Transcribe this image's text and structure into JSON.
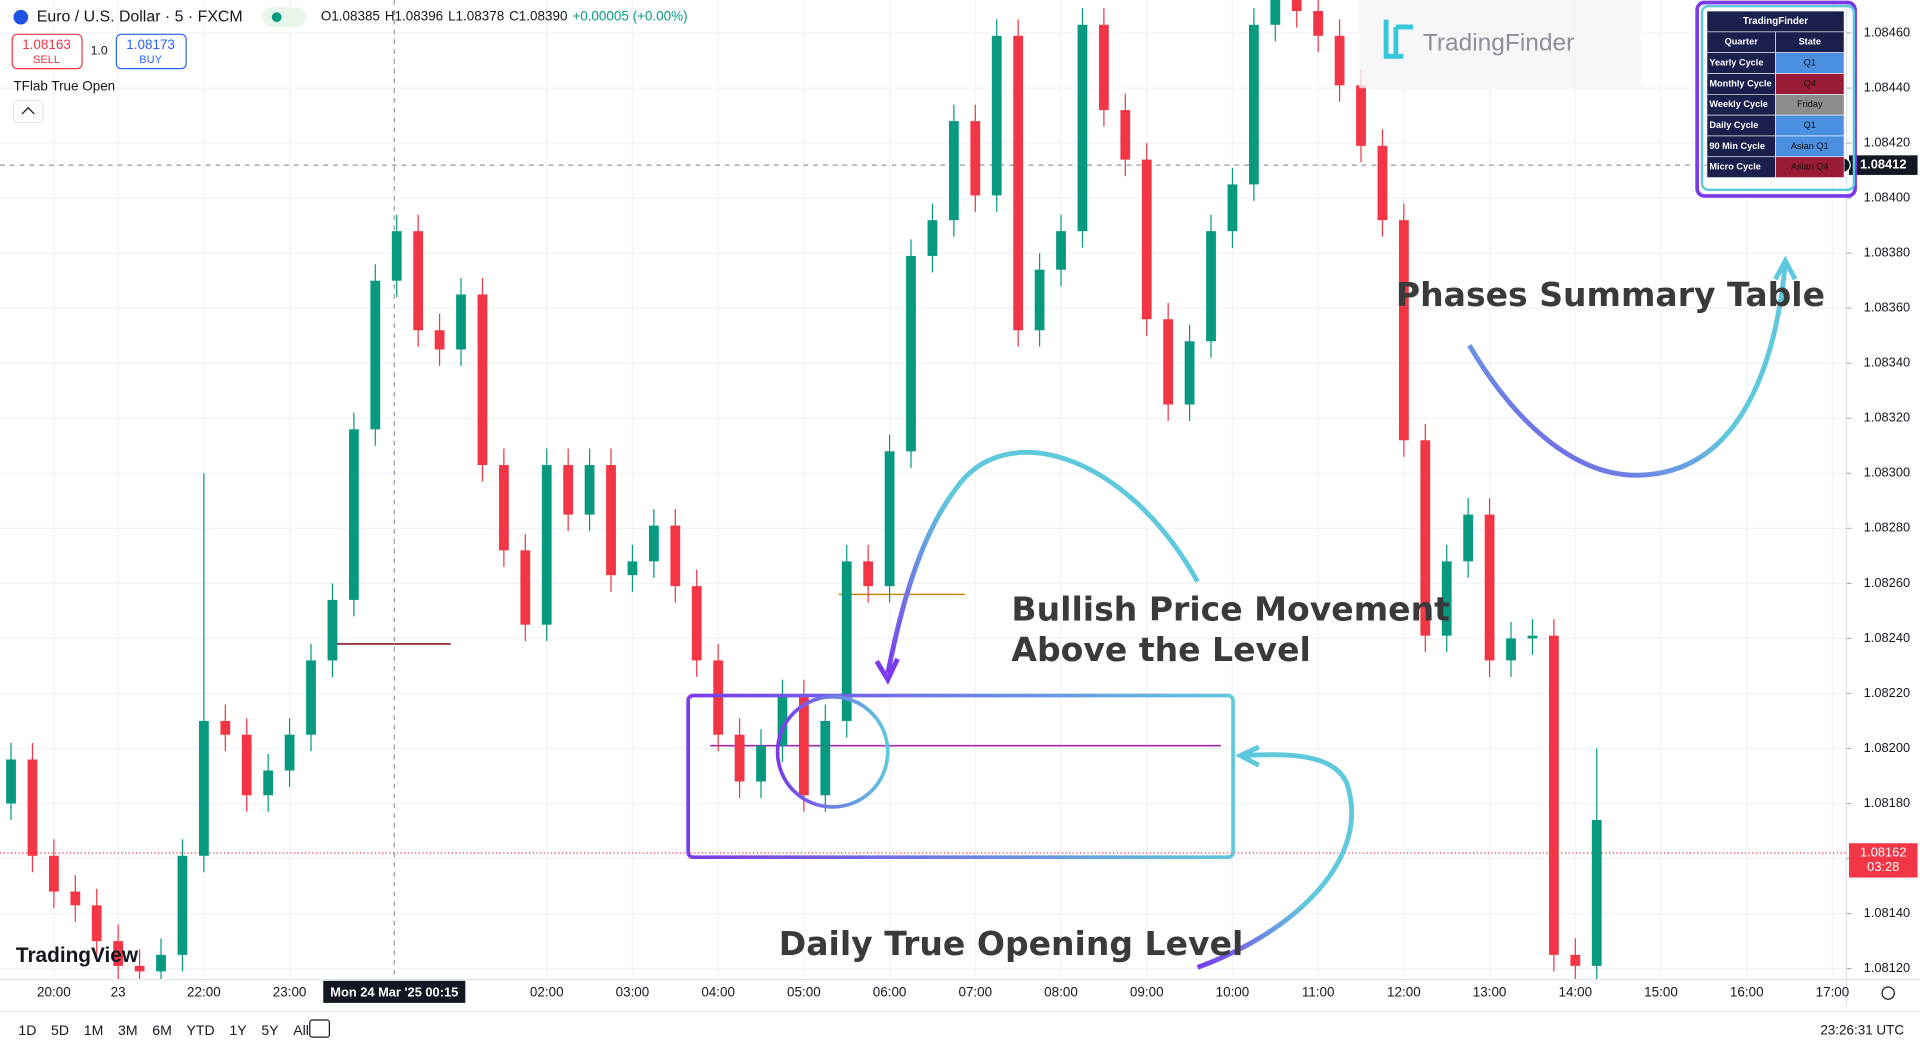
{
  "chart_data": {
    "type": "candlestick",
    "title": "Euro / U.S. Dollar · 5 · FXCM",
    "up_color": "#089981",
    "down_color": "#f23645",
    "grid": true,
    "categories": [
      null,
      null,
      "20:00",
      null,
      null,
      "23",
      null,
      null,
      null,
      "22:00",
      null,
      null,
      null,
      "23:00",
      null,
      null,
      null,
      null,
      null,
      null,
      null,
      null,
      null,
      null,
      null,
      "02:00",
      null,
      null,
      null,
      "03:00",
      null,
      null,
      null,
      "04:00",
      null,
      null,
      null,
      "05:00",
      null,
      null,
      null,
      "06:00",
      null,
      null,
      null,
      "07:00",
      null,
      null,
      null,
      "08:00",
      null,
      null,
      null,
      "09:00",
      null,
      null,
      null,
      "10:00",
      null,
      null,
      null,
      "11:00",
      null,
      null,
      null,
      "12:00",
      null,
      null,
      null,
      "13:00",
      null,
      null,
      null,
      "14:00",
      null,
      null,
      null,
      "15:00",
      null,
      null,
      null,
      "16:00",
      null,
      null,
      null,
      "17:00"
    ],
    "open": [
      1.0818,
      1.08196,
      1.08161,
      1.08148,
      1.08143,
      1.0813,
      1.08121,
      1.08119,
      1.08125,
      1.08161,
      1.0821,
      1.08205,
      1.08183,
      1.08192,
      1.08205,
      1.08232,
      1.08254,
      1.08316,
      1.0837,
      1.08388,
      1.08352,
      1.08345,
      1.08365,
      1.08303,
      1.08272,
      1.08245,
      1.08303,
      1.08285,
      1.08303,
      1.08263,
      1.08268,
      1.08281,
      1.08259,
      1.08232,
      1.08205,
      1.08188,
      1.08201,
      1.08219,
      1.08183,
      1.0821,
      1.08268,
      1.08259,
      1.08308,
      1.08379,
      1.08392,
      1.08428,
      1.08401,
      1.08459,
      1.08352,
      1.08374,
      1.08388,
      1.08463,
      1.08432,
      1.08414,
      1.08356,
      1.08325,
      1.08348,
      1.08388,
      1.08405,
      1.08463,
      1.08472,
      1.08468,
      1.08459,
      1.08441,
      1.08419,
      1.08392,
      1.08312,
      1.08241,
      1.08268,
      1.08285,
      1.08232,
      1.0824,
      1.08241,
      1.08125,
      1.08121,
      null,
      null,
      null,
      null,
      null,
      null,
      null,
      null,
      null,
      null,
      null
    ],
    "high": [
      1.08202,
      1.08202,
      1.08167,
      1.08154,
      1.08149,
      1.08136,
      1.08127,
      1.08131,
      1.08167,
      1.083,
      1.08216,
      1.08211,
      1.08198,
      1.08211,
      1.08238,
      1.0826,
      1.08322,
      1.08376,
      1.08394,
      1.08394,
      1.08358,
      1.08371,
      1.08371,
      1.08309,
      1.08278,
      1.08309,
      1.08309,
      1.08309,
      1.08309,
      1.08274,
      1.08287,
      1.08287,
      1.08265,
      1.08238,
      1.08211,
      1.08207,
      1.08225,
      1.08225,
      1.08216,
      1.08274,
      1.08274,
      1.08314,
      1.08385,
      1.08398,
      1.08434,
      1.08434,
      1.08465,
      1.08465,
      1.0838,
      1.08394,
      1.08469,
      1.08469,
      1.08438,
      1.0842,
      1.08362,
      1.08354,
      1.08394,
      1.08411,
      1.08469,
      1.08478,
      1.08478,
      1.08474,
      1.08465,
      1.08447,
      1.08425,
      1.08398,
      1.08318,
      1.08274,
      1.08291,
      1.08291,
      1.08246,
      1.08247,
      1.08247,
      1.08131,
      1.082,
      null,
      null,
      null,
      null,
      null,
      null,
      null,
      null,
      null,
      null,
      null
    ],
    "low": [
      1.08174,
      1.08155,
      1.08142,
      1.08137,
      1.08124,
      1.08115,
      1.08113,
      1.08113,
      1.08119,
      1.08155,
      1.08199,
      1.08177,
      1.08177,
      1.08186,
      1.08199,
      1.08226,
      1.08248,
      1.0831,
      1.08364,
      1.08346,
      1.08339,
      1.08339,
      1.08297,
      1.08266,
      1.08239,
      1.08239,
      1.08279,
      1.08279,
      1.08257,
      1.08257,
      1.08262,
      1.08253,
      1.08226,
      1.08199,
      1.08182,
      1.08182,
      1.08195,
      1.08177,
      1.08177,
      1.08204,
      1.08253,
      1.08253,
      1.08302,
      1.08373,
      1.08386,
      1.08395,
      1.08395,
      1.08346,
      1.08346,
      1.08368,
      1.08382,
      1.08426,
      1.08408,
      1.0835,
      1.08319,
      1.08319,
      1.08342,
      1.08382,
      1.08399,
      1.08457,
      1.08462,
      1.08453,
      1.08435,
      1.08413,
      1.08386,
      1.08306,
      1.08235,
      1.08235,
      1.08262,
      1.08226,
      1.08226,
      1.08234,
      1.08119,
      1.08115,
      1.08115,
      null,
      null,
      null,
      null,
      null,
      null,
      null,
      null,
      null,
      null,
      null
    ],
    "close": [
      1.08196,
      1.08161,
      1.08148,
      1.08143,
      1.0813,
      1.08121,
      1.08119,
      1.08125,
      1.08161,
      1.0821,
      1.08205,
      1.08183,
      1.08192,
      1.08205,
      1.08232,
      1.08254,
      1.08316,
      1.0837,
      1.08388,
      1.08352,
      1.08345,
      1.08365,
      1.08303,
      1.08272,
      1.08245,
      1.08303,
      1.08285,
      1.08303,
      1.08263,
      1.08268,
      1.08281,
      1.08259,
      1.08232,
      1.08205,
      1.08188,
      1.08201,
      1.08219,
      1.08183,
      1.0821,
      1.08268,
      1.08259,
      1.08308,
      1.08379,
      1.08392,
      1.08428,
      1.08401,
      1.08459,
      1.08352,
      1.08374,
      1.08388,
      1.08463,
      1.08432,
      1.08414,
      1.08356,
      1.08325,
      1.08348,
      1.08388,
      1.08405,
      1.08463,
      1.08472,
      1.08468,
      1.08459,
      1.08441,
      1.08419,
      1.08392,
      1.08312,
      1.08241,
      1.08268,
      1.08285,
      1.08232,
      1.0824,
      1.08241,
      1.08125,
      1.08121,
      1.08174,
      null,
      null,
      null,
      null,
      null,
      null,
      null,
      null,
      null,
      null,
      null
    ],
    "ylim": [
      1.08116,
      1.08472
    ],
    "yticks": [
      {
        "value": 1.0812,
        "label": "1.08120"
      },
      {
        "value": 1.0814,
        "label": "1.08140"
      },
      {
        "value": 1.0816,
        "label": "1.08160"
      },
      {
        "value": 1.0818,
        "label": "1.08180"
      },
      {
        "value": 1.082,
        "label": "1.08200"
      },
      {
        "value": 1.0822,
        "label": "1.08220"
      },
      {
        "value": 1.0824,
        "label": "1.08240"
      },
      {
        "value": 1.0826,
        "label": "1.08260"
      },
      {
        "value": 1.0828,
        "label": "1.08280"
      },
      {
        "value": 1.083,
        "label": "1.08300"
      },
      {
        "value": 1.0832,
        "label": "1.08320"
      },
      {
        "value": 1.0834,
        "label": "1.08340"
      },
      {
        "value": 1.0836,
        "label": "1.08360"
      },
      {
        "value": 1.0838,
        "label": "1.08380"
      },
      {
        "value": 1.084,
        "label": "1.08400"
      },
      {
        "value": 1.0842,
        "label": "1.08420"
      },
      {
        "value": 1.0844,
        "label": "1.08440"
      },
      {
        "value": 1.0846,
        "label": "1.08460"
      }
    ],
    "levels": [
      {
        "value": 1.08238,
        "color": "#8b1a2a"
      },
      {
        "value": 1.08256,
        "color": "#c8860a"
      },
      {
        "value": 1.08201,
        "color": "#9c27b0"
      }
    ],
    "last_price": 1.08162,
    "countdown": "03:28",
    "crosshair": {
      "price": 1.08412,
      "time": "Mon 24 Mar '25 00:15"
    },
    "annotations": [
      "Phases Summary Table",
      "Bullish Price Movement",
      "Above the Level",
      "Daily True Opening Level"
    ]
  },
  "ui": {
    "ohlc": [
      "O1.08385",
      "H1.08396",
      "L1.08378",
      "C1.08390",
      "+0.00005 (+0.00%)"
    ],
    "sell_price": "1.08163",
    "sell": "SELL",
    "spread": "1.0",
    "buy_price": "1.08173",
    "buy": "BUY",
    "indicator": "TFlab True Open",
    "ranges": [
      "1D",
      "5D",
      "1M",
      "3M",
      "6M",
      "YTD",
      "1Y",
      "5Y",
      "All"
    ],
    "clock": "23:26:31 UTC",
    "tv_logo": "TradingView",
    "tf_logo": "TradingFinder"
  },
  "table": {
    "title": "TradingFinder",
    "header": [
      "Quarter",
      "State"
    ],
    "rows": [
      [
        "Yearly Cycle",
        "Q1"
      ],
      [
        "Monthly Cycle",
        "Q4"
      ],
      [
        "Weekly Cycle",
        "Friday"
      ],
      [
        "Daily Cycle",
        "Q1"
      ],
      [
        "90 Min Cycle",
        "Asian Q1"
      ],
      [
        "Micro Cycle",
        "Asian Q4"
      ]
    ],
    "state_colors": [
      "#4a8fe0",
      "#9a1b35",
      "#8c8c8c",
      "#4a8fe0",
      "#4a8fe0",
      "#9a1b35"
    ]
  }
}
